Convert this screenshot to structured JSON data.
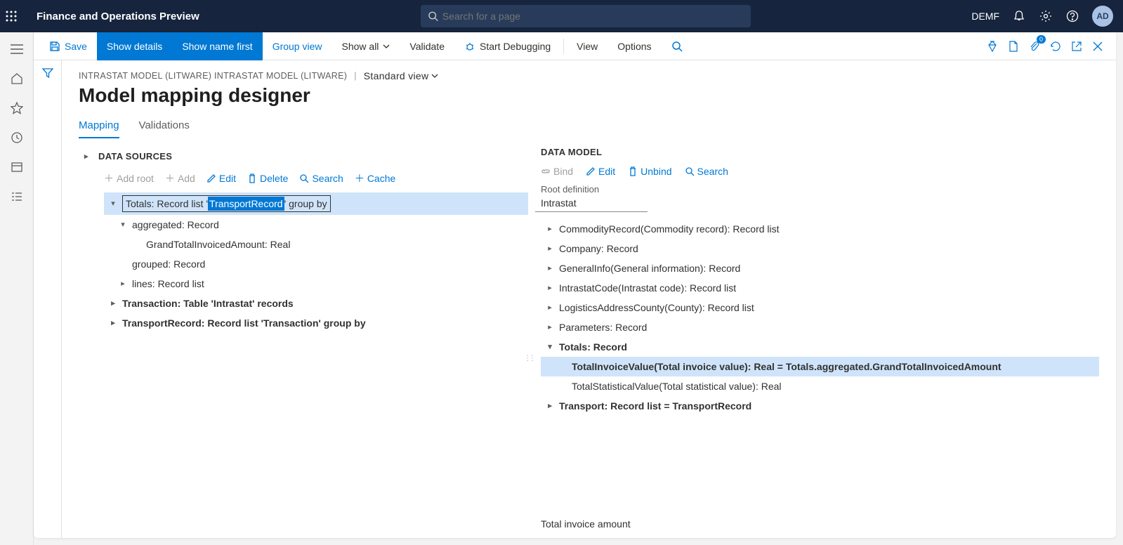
{
  "topbar": {
    "app_title": "Finance and Operations Preview",
    "search_placeholder": "Search for a page",
    "company": "DEMF",
    "avatar": "AD"
  },
  "actionbar": {
    "save": "Save",
    "show_details": "Show details",
    "show_name_first": "Show name first",
    "group_view": "Group view",
    "show_all": "Show all",
    "validate": "Validate",
    "start_debugging": "Start Debugging",
    "view": "View",
    "options": "Options",
    "badge": "0"
  },
  "breadcrumb": {
    "path": "INTRASTAT MODEL (LITWARE) INTRASTAT MODEL (LITWARE)",
    "view": "Standard view"
  },
  "page_title": "Model mapping designer",
  "tabs": {
    "mapping": "Mapping",
    "validations": "Validations"
  },
  "datasources": {
    "header": "DATA SOURCES",
    "toolbar": {
      "add_root": "Add root",
      "add": "Add",
      "edit": "Edit",
      "delete": "Delete",
      "search": "Search",
      "cache": "Cache"
    },
    "rows": [
      {
        "exp": "▾",
        "indent": 0,
        "selected": true,
        "bold": false,
        "boxed": true,
        "pre": "Totals: Record list '",
        "hl": "TransportRecord",
        "post": "' group by"
      },
      {
        "exp": "▾",
        "indent": 1,
        "bold": false,
        "text": "aggregated: Record"
      },
      {
        "exp": "",
        "indent": 2,
        "bold": false,
        "text": "GrandTotalInvoicedAmount: Real"
      },
      {
        "exp": "",
        "indent": 1,
        "bold": false,
        "text": "grouped: Record"
      },
      {
        "exp": "▸",
        "indent": 1,
        "bold": false,
        "text": "lines: Record list"
      },
      {
        "exp": "▸",
        "indent": 0,
        "bold": true,
        "text": "Transaction: Table 'Intrastat' records"
      },
      {
        "exp": "▸",
        "indent": 0,
        "bold": true,
        "text": "TransportRecord: Record list 'Transaction' group by"
      }
    ]
  },
  "datamodel": {
    "header": "DATA MODEL",
    "toolbar": {
      "bind": "Bind",
      "edit": "Edit",
      "unbind": "Unbind",
      "search": "Search"
    },
    "root_label": "Root definition",
    "root_value": "Intrastat",
    "rows": [
      {
        "exp": "▸",
        "indent": 0,
        "bold": false,
        "text": "CommodityRecord(Commodity record): Record list"
      },
      {
        "exp": "▸",
        "indent": 0,
        "bold": false,
        "text": "Company: Record"
      },
      {
        "exp": "▸",
        "indent": 0,
        "bold": false,
        "text": "GeneralInfo(General information): Record"
      },
      {
        "exp": "▸",
        "indent": 0,
        "bold": false,
        "text": "IntrastatCode(Intrastat code): Record list"
      },
      {
        "exp": "▸",
        "indent": 0,
        "bold": false,
        "text": "LogisticsAddressCounty(County): Record list"
      },
      {
        "exp": "▸",
        "indent": 0,
        "bold": false,
        "text": "Parameters: Record"
      },
      {
        "exp": "▾",
        "indent": 0,
        "bold": true,
        "text": "Totals: Record"
      },
      {
        "exp": "",
        "indent": 1,
        "bold": true,
        "selected": true,
        "text": "TotalInvoiceValue(Total invoice value): Real = Totals.aggregated.GrandTotalInvoicedAmount"
      },
      {
        "exp": "",
        "indent": 1,
        "bold": false,
        "text": "TotalStatisticalValue(Total statistical value): Real"
      },
      {
        "exp": "▸",
        "indent": 0,
        "bold": true,
        "text": "Transport: Record list = TransportRecord"
      }
    ],
    "footer": "Total invoice amount"
  }
}
